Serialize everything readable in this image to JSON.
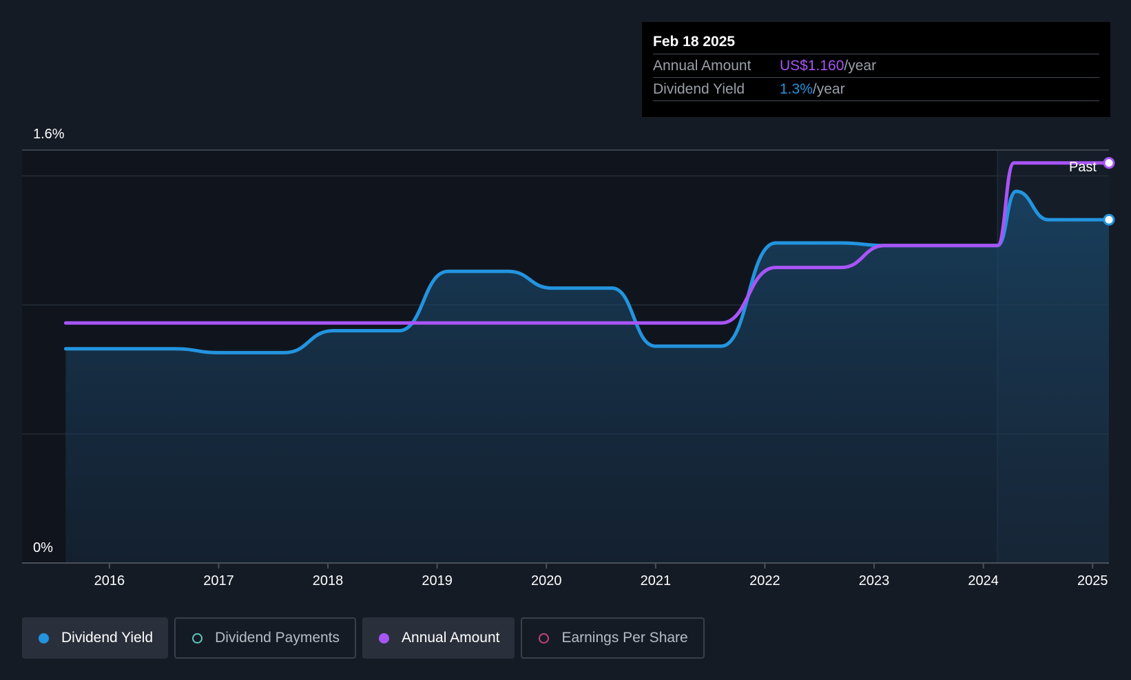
{
  "tooltip": {
    "date": "Feb 18 2025",
    "annual_amount_label": "Annual Amount",
    "annual_amount_value": "US$1.160",
    "annual_amount_unit": "/year",
    "dividend_yield_label": "Dividend Yield",
    "dividend_yield_value": "1.3%",
    "dividend_yield_unit": "/year"
  },
  "legend": {
    "items": [
      {
        "label": "Dividend Yield",
        "color": "#2394df",
        "active": true,
        "marker": "filled"
      },
      {
        "label": "Dividend Payments",
        "color": "#5ec8c0",
        "active": false,
        "marker": "hollow"
      },
      {
        "label": "Annual Amount",
        "color": "#a855f7",
        "active": true,
        "marker": "filled"
      },
      {
        "label": "Earnings Per Share",
        "color": "#c0457a",
        "active": false,
        "marker": "hollow"
      }
    ]
  },
  "chart_data": {
    "type": "line",
    "title": "",
    "xlabel": "",
    "ylabel": "",
    "y_tick_labels": [
      "1.6%",
      "0%"
    ],
    "ylim": [
      0,
      1.6
    ],
    "xlim": [
      2015.2,
      2025.15
    ],
    "x_ticks": [
      2016,
      2017,
      2018,
      2019,
      2020,
      2021,
      2022,
      2023,
      2024,
      2025
    ],
    "x_tick_labels": [
      "2016",
      "2017",
      "2018",
      "2019",
      "2020",
      "2021",
      "2022",
      "2023",
      "2024",
      "2025"
    ],
    "past_label": "Past",
    "past_start": 2024.13,
    "grid": true,
    "series": [
      {
        "name": "Dividend Yield",
        "color": "#2394df",
        "area": true,
        "x": [
          2015.6,
          2016.6,
          2017.0,
          2017.6,
          2018.05,
          2018.65,
          2019.1,
          2019.65,
          2020.05,
          2020.6,
          2021.0,
          2021.6,
          2022.1,
          2022.7,
          2023.1,
          2024.13,
          2024.3,
          2024.6,
          2025.15
        ],
        "y": [
          0.83,
          0.83,
          0.815,
          0.815,
          0.9,
          0.9,
          1.13,
          1.13,
          1.065,
          1.065,
          0.84,
          0.84,
          1.24,
          1.24,
          1.23,
          1.23,
          1.44,
          1.33,
          1.33
        ]
      },
      {
        "name": "Annual Amount",
        "color": "#a855f7",
        "area": false,
        "x": [
          2015.6,
          2021.6,
          2022.1,
          2022.7,
          2023.1,
          2024.13,
          2024.28,
          2025.15
        ],
        "y": [
          0.93,
          0.93,
          1.145,
          1.145,
          1.23,
          1.23,
          1.55,
          1.55
        ]
      }
    ]
  }
}
